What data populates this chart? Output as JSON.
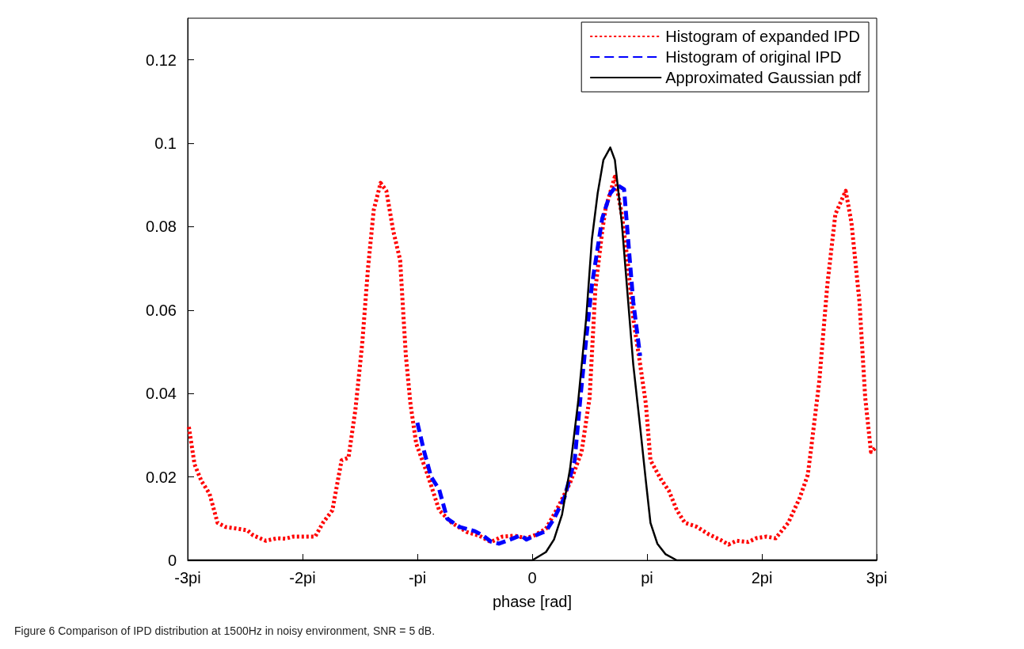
{
  "chart_data": {
    "type": "line",
    "xlabel": "phase [rad]",
    "xlim": [
      -3,
      3
    ],
    "xticks": [
      {
        "value": -3,
        "label": "-3pi"
      },
      {
        "value": -2,
        "label": "-2pi"
      },
      {
        "value": -1,
        "label": "-pi"
      },
      0,
      {
        "value": 1,
        "label": "pi"
      },
      {
        "value": 2,
        "label": "2pi"
      },
      {
        "value": 3,
        "label": "3pi"
      }
    ],
    "ylim": [
      0,
      0.13
    ],
    "yticks": [
      0,
      0.02,
      0.04,
      0.06,
      0.08,
      0.1,
      0.12
    ],
    "grid": false,
    "legend": "top right",
    "marker": "none",
    "annotations": [
      "Figure 6 Comparison of IPD distribution at 1500Hz in noisy environment, SNR = 5 dB."
    ],
    "series": [
      {
        "name": "Histogram of expanded IPD",
        "color": "#ff0000",
        "line_style": "dotted",
        "x": [
          -2.99,
          -2.94,
          -2.88,
          -2.81,
          -2.74,
          -2.67,
          -2.57,
          -2.48,
          -2.43,
          -2.32,
          -2.22,
          -2.15,
          -2.08,
          -1.98,
          -1.89,
          -1.82,
          -1.74,
          -1.66,
          -1.6,
          -1.54,
          -1.48,
          -1.43,
          -1.38,
          -1.32,
          -1.27,
          -1.21,
          -1.15,
          -1.12,
          -1.1,
          -1.06,
          -1.01,
          -0.91,
          -0.81,
          -0.7,
          -0.57,
          -0.46,
          -0.36,
          -0.26,
          -0.15,
          -0.05,
          0.02,
          0.12,
          0.23,
          0.33,
          0.43,
          0.5,
          0.55,
          0.61,
          0.64,
          0.72,
          0.78,
          0.83,
          0.88,
          0.94,
          0.99,
          1.03,
          1.12,
          1.19,
          1.26,
          1.33,
          1.43,
          1.54,
          1.64,
          1.71,
          1.78,
          1.88,
          1.95,
          2.04,
          2.12,
          2.23,
          2.33,
          2.4,
          2.43,
          2.5,
          2.57,
          2.64,
          2.73,
          2.78,
          2.85,
          2.9,
          2.95,
          2.99
        ],
        "values": [
          0.032,
          0.023,
          0.019,
          0.016,
          0.009,
          0.008,
          0.0076,
          0.0072,
          0.006,
          0.0047,
          0.0053,
          0.0052,
          0.0057,
          0.0057,
          0.0057,
          0.0091,
          0.012,
          0.024,
          0.0246,
          0.036,
          0.052,
          0.07,
          0.084,
          0.0905,
          0.0886,
          0.079,
          0.072,
          0.058,
          0.049,
          0.0375,
          0.028,
          0.0205,
          0.012,
          0.009,
          0.0068,
          0.0059,
          0.0044,
          0.0057,
          0.0059,
          0.0053,
          0.006,
          0.0076,
          0.013,
          0.0186,
          0.026,
          0.039,
          0.065,
          0.079,
          0.0845,
          0.092,
          0.083,
          0.072,
          0.058,
          0.047,
          0.0375,
          0.024,
          0.0195,
          0.0167,
          0.012,
          0.009,
          0.0081,
          0.0062,
          0.0049,
          0.0038,
          0.0047,
          0.0044,
          0.0053,
          0.0057,
          0.0053,
          0.009,
          0.015,
          0.0205,
          0.027,
          0.043,
          0.066,
          0.083,
          0.0886,
          0.081,
          0.062,
          0.039,
          0.026,
          0.027
        ]
      },
      {
        "name": "Histogram of original IPD",
        "color": "#0000ff",
        "line_style": "dashed",
        "x": [
          -1.0,
          -0.94,
          -0.88,
          -0.81,
          -0.74,
          -0.63,
          -0.5,
          -0.43,
          -0.36,
          -0.29,
          -0.19,
          -0.1,
          -0.05,
          0.03,
          0.12,
          0.19,
          0.28,
          0.37,
          0.42,
          0.47,
          0.52,
          0.61,
          0.68,
          0.74,
          0.8,
          0.85,
          0.88,
          0.94
        ],
        "values": [
          0.033,
          0.026,
          0.02,
          0.017,
          0.01,
          0.008,
          0.007,
          0.006,
          0.0045,
          0.004,
          0.005,
          0.006,
          0.005,
          0.006,
          0.007,
          0.01,
          0.015,
          0.024,
          0.039,
          0.053,
          0.066,
          0.082,
          0.088,
          0.09,
          0.089,
          0.072,
          0.062,
          0.049
        ]
      },
      {
        "name": "Approximated Gaussian pdf",
        "color": "#000000",
        "line_style": "solid",
        "x": [
          -3,
          0,
          0.06,
          0.12,
          0.19,
          0.26,
          0.33,
          0.4,
          0.47,
          0.52,
          0.57,
          0.62,
          0.68,
          0.72,
          0.78,
          0.83,
          0.88,
          0.94,
          0.99,
          1.03,
          1.09,
          1.16,
          1.26,
          3
        ],
        "values": [
          0,
          0,
          0.001,
          0.002,
          0.005,
          0.011,
          0.022,
          0.038,
          0.058,
          0.077,
          0.088,
          0.096,
          0.099,
          0.096,
          0.081,
          0.064,
          0.047,
          0.032,
          0.019,
          0.009,
          0.004,
          0.0015,
          0,
          0
        ]
      }
    ]
  }
}
